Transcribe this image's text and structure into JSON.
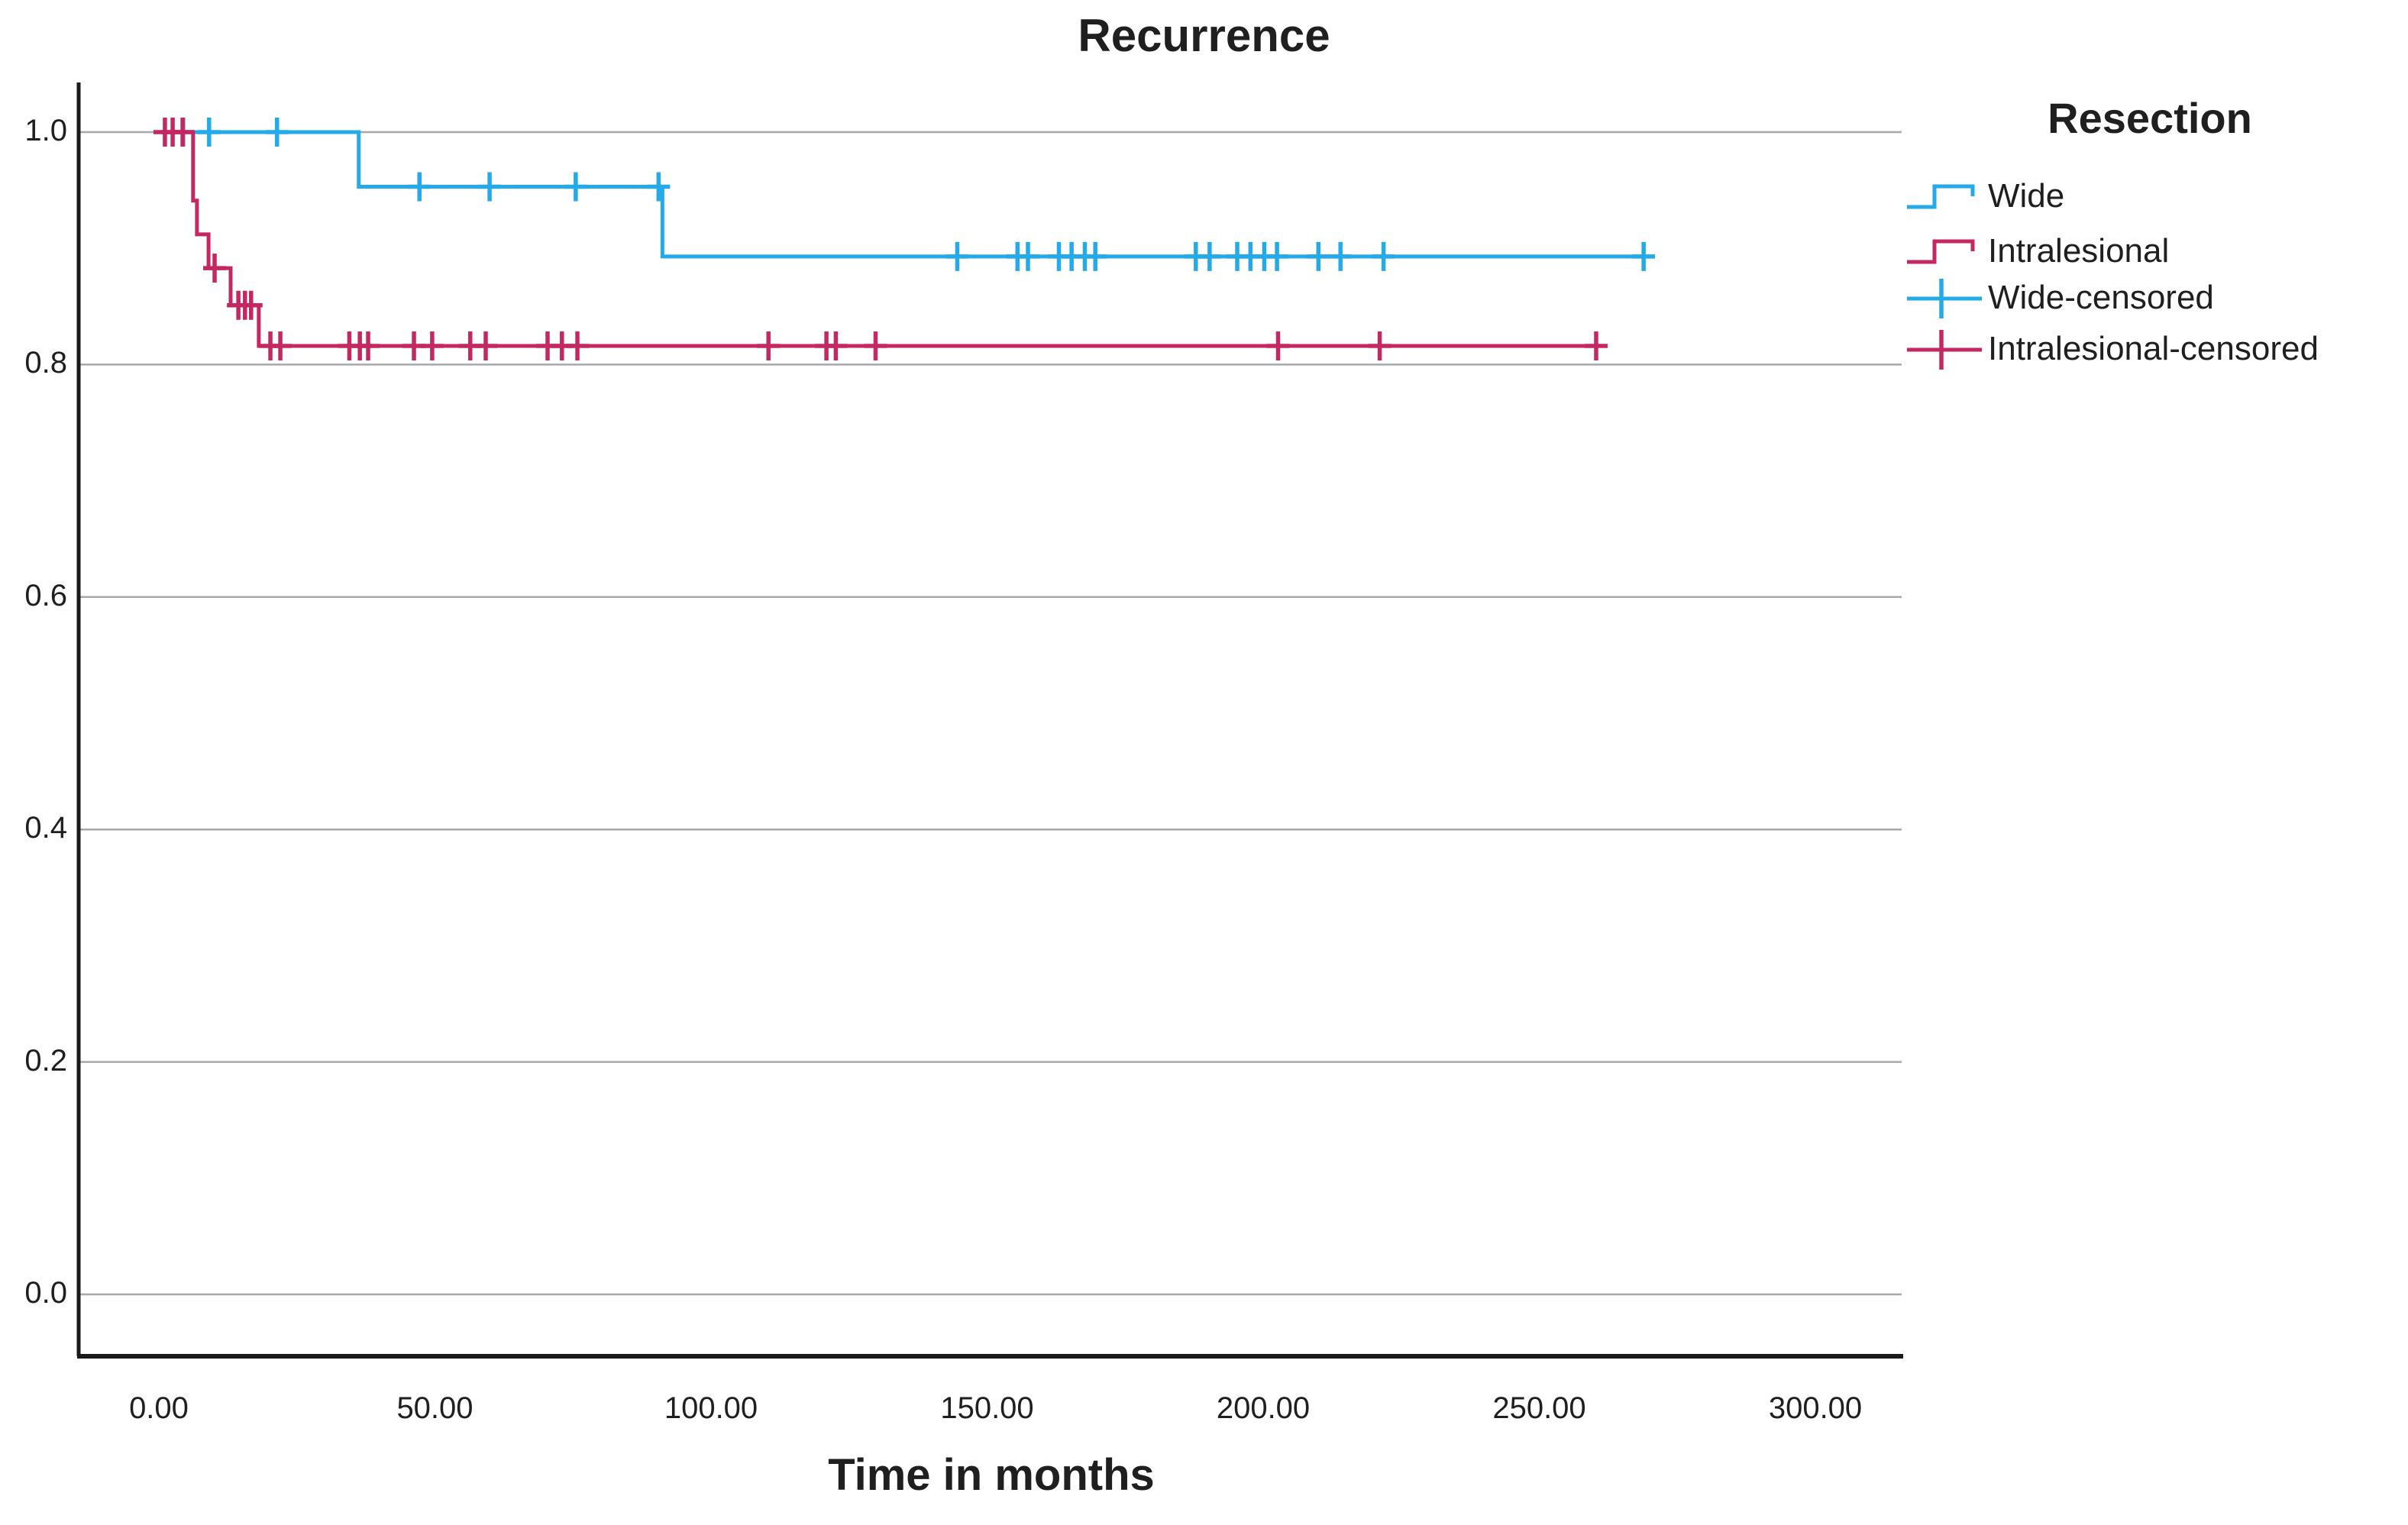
{
  "title": "Recurrence",
  "x_axis": {
    "label": "Time in months",
    "tick_labels": [
      "0.00",
      "50.00",
      "100.00",
      "150.00",
      "200.00",
      "250.00",
      "300.00"
    ],
    "tick_values": [
      0,
      50,
      100,
      150,
      200,
      250,
      300
    ]
  },
  "y_axis": {
    "tick_labels": [
      "0.0",
      "0.2",
      "0.4",
      "0.6",
      "0.8",
      "1.0"
    ],
    "tick_values": [
      0.0,
      0.2,
      0.4,
      0.6,
      0.8,
      1.0
    ]
  },
  "legend": {
    "title": "Resection",
    "items": [
      {
        "label": "Wide",
        "type": "line",
        "color": "#25AAE9"
      },
      {
        "label": "Intralesional",
        "type": "line",
        "color": "#C42862"
      },
      {
        "label": "Wide-censored",
        "type": "censored",
        "color": "#25AAE9"
      },
      {
        "label": "Intralesional-censored",
        "type": "censored",
        "color": "#C42862"
      }
    ]
  },
  "colors": {
    "wide": "#25AAE9",
    "intralesional": "#C42862",
    "gridline": "#A8A8A8",
    "axis": "#1A1A1A",
    "text": "#1F1F1F",
    "background": "#FFFFFF"
  },
  "chart_data": {
    "type": "line",
    "subtype": "kaplan-meier-step",
    "title": "Recurrence",
    "xlabel": "Time in months",
    "ylabel": "",
    "xlim": [
      -14.5,
      316
    ],
    "ylim": [
      -0.07,
      1.04
    ],
    "grid": "horizontal-only",
    "legend_position": "right",
    "x_ticks": [
      0,
      50,
      100,
      150,
      200,
      250,
      300
    ],
    "y_ticks": [
      0.0,
      0.2,
      0.4,
      0.6,
      0.8,
      1.0
    ],
    "series": [
      {
        "name": "Wide",
        "color": "#25AAE9",
        "steps": [
          {
            "t": 0,
            "s": 1.0
          },
          {
            "t": 36.2,
            "s": 0.953
          },
          {
            "t": 91.2,
            "s": 0.893
          }
        ],
        "end_t": 268.9,
        "censored": [
          {
            "t": 4.4,
            "s": 1.0
          },
          {
            "t": 9.1,
            "s": 1.0
          },
          {
            "t": 21.4,
            "s": 1.0
          },
          {
            "t": 47.2,
            "s": 0.953
          },
          {
            "t": 59.9,
            "s": 0.953
          },
          {
            "t": 75.5,
            "s": 0.953
          },
          {
            "t": 90.5,
            "s": 0.953
          },
          {
            "t": 144.6,
            "s": 0.893
          },
          {
            "t": 155.5,
            "s": 0.893
          },
          {
            "t": 157.4,
            "s": 0.893
          },
          {
            "t": 163.0,
            "s": 0.893
          },
          {
            "t": 165.3,
            "s": 0.893
          },
          {
            "t": 167.7,
            "s": 0.893
          },
          {
            "t": 169.6,
            "s": 0.893
          },
          {
            "t": 187.8,
            "s": 0.893
          },
          {
            "t": 190.3,
            "s": 0.893
          },
          {
            "t": 195.3,
            "s": 0.893
          },
          {
            "t": 197.7,
            "s": 0.893
          },
          {
            "t": 200.2,
            "s": 0.893
          },
          {
            "t": 202.5,
            "s": 0.893
          },
          {
            "t": 210.0,
            "s": 0.893
          },
          {
            "t": 214.0,
            "s": 0.893
          },
          {
            "t": 221.8,
            "s": 0.893
          },
          {
            "t": 268.9,
            "s": 0.893
          }
        ]
      },
      {
        "name": "Intralesional",
        "color": "#C42862",
        "steps": [
          {
            "t": 0,
            "s": 1.0
          },
          {
            "t": 6.2,
            "s": 0.941
          },
          {
            "t": 6.9,
            "s": 0.912
          },
          {
            "t": 9.0,
            "s": 0.883
          },
          {
            "t": 13.0,
            "s": 0.851
          },
          {
            "t": 18.1,
            "s": 0.816
          }
        ],
        "end_t": 260.3,
        "censored": [
          {
            "t": 1.1,
            "s": 1.0
          },
          {
            "t": 2.5,
            "s": 1.0
          },
          {
            "t": 4.3,
            "s": 1.0
          },
          {
            "t": 10.1,
            "s": 0.883
          },
          {
            "t": 14.4,
            "s": 0.851
          },
          {
            "t": 15.6,
            "s": 0.851
          },
          {
            "t": 16.7,
            "s": 0.851
          },
          {
            "t": 20.2,
            "s": 0.816
          },
          {
            "t": 22.0,
            "s": 0.816
          },
          {
            "t": 34.5,
            "s": 0.816
          },
          {
            "t": 36.4,
            "s": 0.816
          },
          {
            "t": 37.9,
            "s": 0.816
          },
          {
            "t": 46.2,
            "s": 0.816
          },
          {
            "t": 49.5,
            "s": 0.816
          },
          {
            "t": 56.4,
            "s": 0.816
          },
          {
            "t": 59.2,
            "s": 0.816
          },
          {
            "t": 70.4,
            "s": 0.816
          },
          {
            "t": 73.0,
            "s": 0.816
          },
          {
            "t": 75.8,
            "s": 0.816
          },
          {
            "t": 110.4,
            "s": 0.816
          },
          {
            "t": 120.9,
            "s": 0.816
          },
          {
            "t": 122.6,
            "s": 0.816
          },
          {
            "t": 129.8,
            "s": 0.816
          },
          {
            "t": 202.7,
            "s": 0.816
          },
          {
            "t": 221.1,
            "s": 0.816
          },
          {
            "t": 260.3,
            "s": 0.816
          }
        ]
      }
    ]
  }
}
